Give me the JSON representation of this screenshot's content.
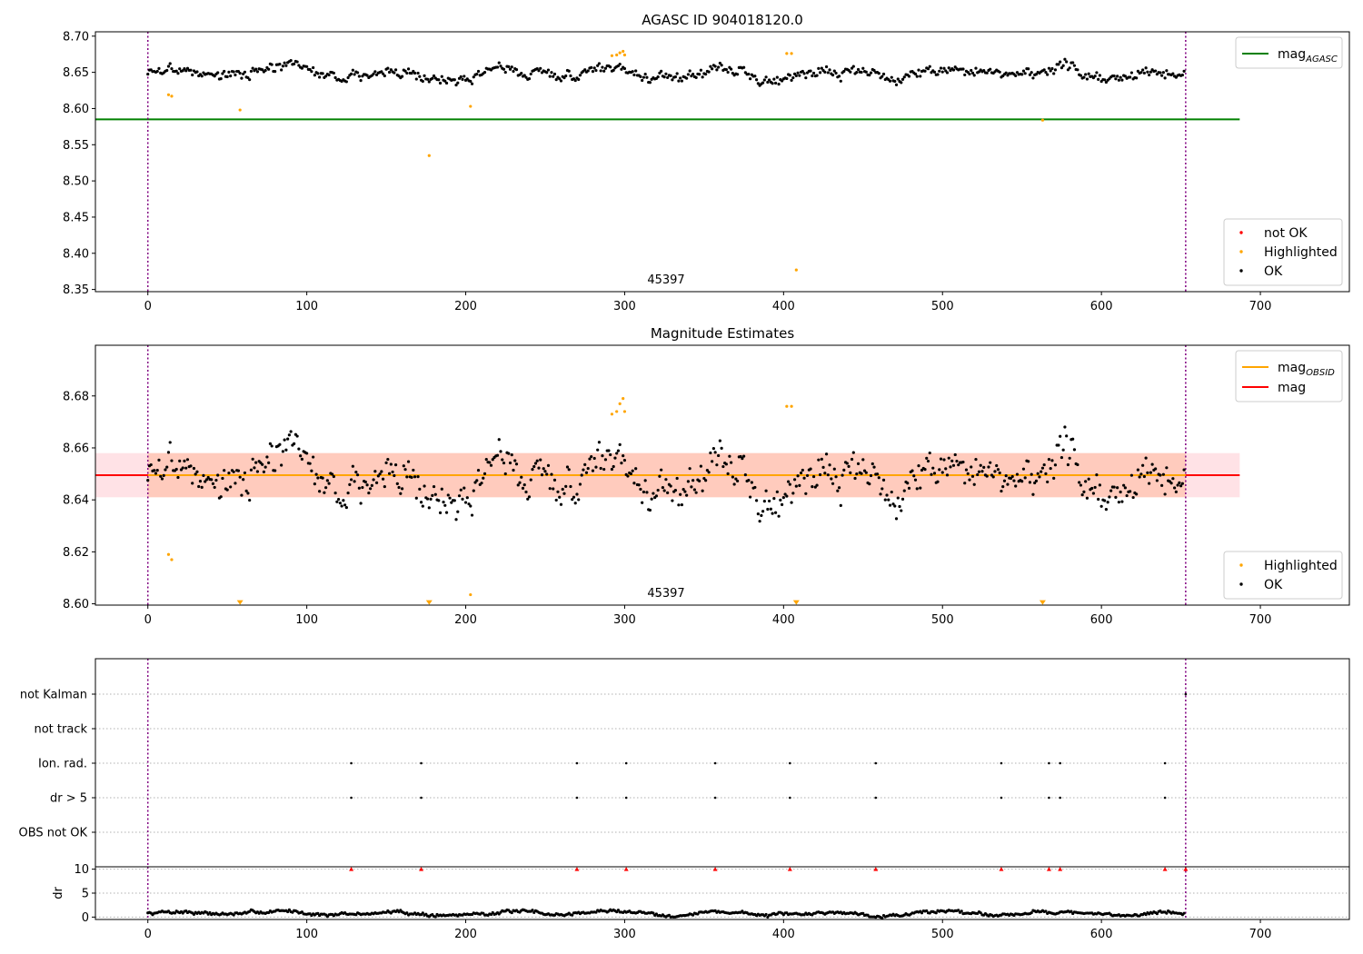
{
  "chart_data": [
    {
      "type": "scatter",
      "title": "AGASC ID 904018120.0",
      "annotation": "45397",
      "xlim": [
        -33,
        756
      ],
      "ylim": [
        8.347,
        8.706
      ],
      "xticks": [
        0,
        100,
        200,
        300,
        400,
        500,
        600,
        700
      ],
      "yticks": [
        8.35,
        8.4,
        8.45,
        8.5,
        8.55,
        8.6,
        8.65,
        8.7
      ],
      "y_tick_decimals": 2,
      "vlines": [
        0,
        653
      ],
      "hlines": [
        {
          "name": "mag_AGASC",
          "y": 8.585,
          "x": [
            -33,
            687
          ],
          "color": "#008000"
        }
      ],
      "legend_lines": [
        {
          "label": "mag",
          "sub": "AGASC",
          "color": "#008000"
        }
      ],
      "legend_lines_placement": "top-right",
      "legend_points": [
        {
          "label": "not OK",
          "color": "#ff0000"
        },
        {
          "label": "Highlighted",
          "color": "#ffa500"
        },
        {
          "label": "OK",
          "color": "#000000"
        }
      ],
      "legend_points_placement": "bottom-right",
      "series": [
        {
          "name": "OK",
          "color": "#000000",
          "generated": {
            "n": 653,
            "base": 8.649,
            "amp": 0.012,
            "seed": 3
          }
        },
        {
          "name": "Highlighted",
          "color": "#ffa500",
          "points": [
            [
              13,
              8.619
            ],
            [
              15,
              8.617
            ],
            [
              58,
              8.598
            ],
            [
              177,
              8.535
            ],
            [
              203,
              8.603
            ],
            [
              292,
              8.673
            ],
            [
              295,
              8.674
            ],
            [
              297,
              8.677
            ],
            [
              299,
              8.679
            ],
            [
              300,
              8.674
            ],
            [
              402,
              8.676
            ],
            [
              405,
              8.676
            ],
            [
              408,
              8.377
            ],
            [
              563,
              8.584
            ]
          ]
        }
      ]
    },
    {
      "type": "scatter",
      "title": "Magnitude Estimates",
      "annotation": "45397",
      "xlim": [
        -33,
        756
      ],
      "ylim": [
        8.5995,
        8.6995
      ],
      "xticks": [
        0,
        100,
        200,
        300,
        400,
        500,
        600,
        700
      ],
      "yticks": [
        8.6,
        8.62,
        8.64,
        8.66,
        8.68
      ],
      "y_tick_decimals": 2,
      "vlines": [
        0,
        653
      ],
      "bands": [
        {
          "y": [
            8.641,
            8.658
          ],
          "x": [
            -33,
            687
          ],
          "color": "#ff9eac",
          "opacity": 0.3
        },
        {
          "y": [
            8.641,
            8.658
          ],
          "x": [
            0,
            653
          ],
          "color": "#ffa070",
          "opacity": 0.35
        }
      ],
      "hlines": [
        {
          "name": "mag",
          "y": 8.6495,
          "x": [
            -33,
            687
          ],
          "color": "#ff0000"
        },
        {
          "name": "mag_OBSID",
          "y": 8.6495,
          "x": [
            0,
            653
          ],
          "color": "#ffa500"
        }
      ],
      "legend_lines": [
        {
          "label": "mag",
          "sub": "OBSID",
          "color": "#ffa500"
        },
        {
          "label": "mag",
          "sub": "",
          "color": "#ff0000"
        }
      ],
      "legend_lines_placement": "top-right",
      "legend_points": [
        {
          "label": "Highlighted",
          "color": "#ffa500"
        },
        {
          "label": "OK",
          "color": "#000000"
        }
      ],
      "legend_points_placement": "bottom-right",
      "series": [
        {
          "name": "OK",
          "color": "#000000",
          "generated": {
            "n": 653,
            "base": 8.649,
            "amp": 0.012,
            "seed": 3
          }
        },
        {
          "name": "Highlighted",
          "color": "#ffa500",
          "points": [
            [
              13,
              8.619
            ],
            [
              15,
              8.617
            ],
            [
              203,
              8.6035
            ],
            [
              292,
              8.673
            ],
            [
              295,
              8.674
            ],
            [
              297,
              8.677
            ],
            [
              299,
              8.679
            ],
            [
              300,
              8.674
            ],
            [
              402,
              8.676
            ],
            [
              405,
              8.676
            ]
          ]
        },
        {
          "name": "Highlighted (below axis)",
          "color": "#ffa500",
          "marker": "triangle-down",
          "points": [
            [
              58,
              8.6
            ],
            [
              177,
              8.6
            ],
            [
              408,
              8.6
            ],
            [
              563,
              8.6
            ]
          ]
        }
      ]
    },
    {
      "type": "scatter",
      "xlim": [
        -33,
        756
      ],
      "xticks": [
        0,
        100,
        200,
        300,
        400,
        500,
        600,
        700
      ],
      "vlines": [
        0,
        653
      ],
      "categories": [
        "not Kalman",
        "not track",
        "Ion. rad.",
        "dr > 5",
        "OBS not OK"
      ],
      "flags": [
        {
          "category": "not Kalman",
          "x": [
            653
          ]
        },
        {
          "category": "not track",
          "x": []
        },
        {
          "category": "Ion. rad.",
          "x": [
            128,
            172,
            270,
            301,
            357,
            404,
            458,
            537,
            567,
            574,
            640
          ]
        },
        {
          "category": "dr > 5",
          "x": [
            128,
            172,
            270,
            301,
            357,
            404,
            458,
            537,
            567,
            574,
            640
          ]
        },
        {
          "category": "OBS not OK",
          "x": []
        }
      ]
    },
    {
      "type": "scatter",
      "ylabel": "dr",
      "xlim": [
        -33,
        756
      ],
      "ylim": [
        -0.5,
        10.5
      ],
      "xticks": [
        0,
        100,
        200,
        300,
        400,
        500,
        600,
        700
      ],
      "yticks": [
        0,
        5,
        10
      ],
      "y_tick_decimals": 0,
      "vlines": [
        0,
        653
      ],
      "clipped_high": {
        "y": 10,
        "color": "#ff0000",
        "x": [
          128,
          172,
          270,
          301,
          357,
          404,
          458,
          537,
          567,
          574,
          640,
          653
        ]
      },
      "series": [
        {
          "name": "dr",
          "color": "#000000",
          "generated": {
            "n": 653,
            "base": 0.8,
            "amp": 0.6,
            "seed": 7
          }
        }
      ]
    }
  ]
}
